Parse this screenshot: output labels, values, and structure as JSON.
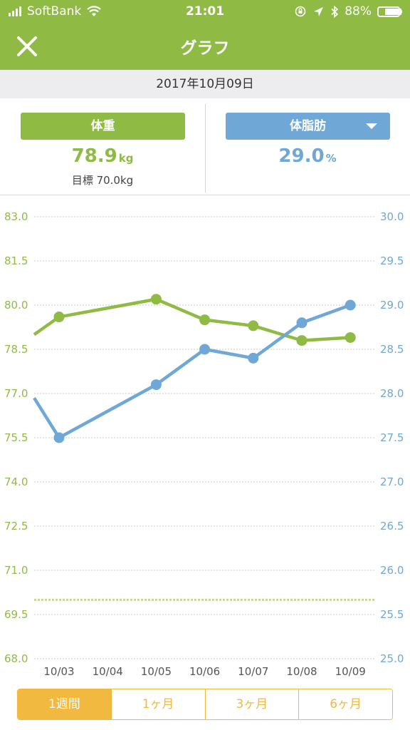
{
  "status_bar": {
    "carrier": "SoftBank",
    "time": "21:01",
    "battery": "88%",
    "battery_level": 0.88
  },
  "nav": {
    "title": "グラフ",
    "close_icon": "close-icon"
  },
  "date": "2017年10月09日",
  "summary": {
    "weight": {
      "label": "体重",
      "value": "78.9",
      "unit": "kg",
      "goal": "目標 70.0kg"
    },
    "fat": {
      "label": "体脂肪",
      "value": "29.0",
      "unit": "%"
    }
  },
  "colors": {
    "weight": "#8fbb45",
    "fat": "#6fa8d6",
    "tab_accent": "#f1b940"
  },
  "chart_data": {
    "type": "line",
    "categories": [
      "10/03",
      "10/04",
      "10/05",
      "10/06",
      "10/07",
      "10/08",
      "10/09"
    ],
    "left_axis": {
      "ylim": [
        68.0,
        83.0
      ],
      "ticks": [
        "83.0",
        "81.5",
        "80.0",
        "78.5",
        "77.0",
        "75.5",
        "74.0",
        "72.5",
        "71.0",
        "69.5",
        "68.0"
      ]
    },
    "right_axis": {
      "ylim": [
        25.0,
        30.0
      ],
      "ticks": [
        "30.0",
        "29.5",
        "29.0",
        "28.5",
        "28.0",
        "27.5",
        "27.0",
        "26.5",
        "26.0",
        "25.5",
        "25.0"
      ]
    },
    "goal_line": 70.0,
    "series": [
      {
        "axis": "left",
        "color": "#8fbb45",
        "lead_in": 79.0,
        "points": [
          [
            0,
            79.6
          ],
          [
            2,
            80.2
          ],
          [
            3,
            79.5
          ],
          [
            4,
            79.3
          ],
          [
            5,
            78.8
          ],
          [
            6,
            78.9
          ]
        ]
      },
      {
        "axis": "right",
        "color": "#6fa8d6",
        "lead_in": 27.95,
        "points": [
          [
            0,
            27.5
          ],
          [
            2,
            28.1
          ],
          [
            3,
            28.5
          ],
          [
            4,
            28.4
          ],
          [
            5,
            28.8
          ],
          [
            6,
            29.0
          ]
        ]
      }
    ],
    "grid": true
  },
  "period_tabs": [
    {
      "label": "1週間",
      "active": true
    },
    {
      "label": "1ヶ月",
      "active": false
    },
    {
      "label": "3ヶ月",
      "active": false
    },
    {
      "label": "6ヶ月",
      "active": false
    }
  ]
}
